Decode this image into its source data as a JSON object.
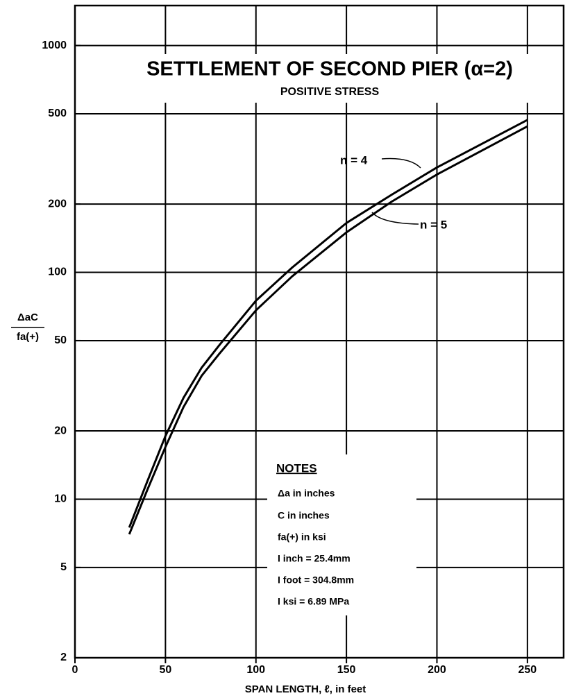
{
  "chart_data": {
    "type": "line",
    "title": "SETTLEMENT OF SECOND PIER (α=2)",
    "subtitle": "POSITIVE STRESS",
    "x_label": "SPAN LENGTH, ℓ, in feet",
    "y_label": {
      "numerator": "ΔaC",
      "denominator": "fa(+)"
    },
    "log_y": true,
    "grid": true,
    "xlim": [
      0,
      270
    ],
    "xticks": [
      0,
      50,
      100,
      150,
      200,
      250
    ],
    "ylim": [
      2,
      1500
    ],
    "yticks": [
      2,
      5,
      10,
      20,
      50,
      100,
      200,
      500,
      1000
    ],
    "series": [
      {
        "name": "n = 4",
        "color": "#000000",
        "x": [
          30,
          40,
          50,
          60,
          70,
          80,
          100,
          120,
          150,
          175,
          200,
          250
        ],
        "values": [
          7.5,
          12,
          19,
          28,
          38,
          48,
          75,
          105,
          165,
          220,
          290,
          470
        ]
      },
      {
        "name": "n = 5",
        "color": "#000000",
        "x": [
          30,
          40,
          50,
          60,
          70,
          80,
          100,
          120,
          150,
          175,
          200,
          250
        ],
        "values": [
          7,
          11,
          17,
          25.5,
          35,
          44,
          68,
          96,
          150,
          205,
          270,
          440
        ]
      }
    ],
    "notes": {
      "title": "NOTES",
      "lines": [
        "Δa in inches",
        "C in inches",
        "fa(+) in ksi",
        "I inch = 25.4mm",
        "I foot = 304.8mm",
        "I ksi = 6.89 MPa"
      ]
    }
  }
}
